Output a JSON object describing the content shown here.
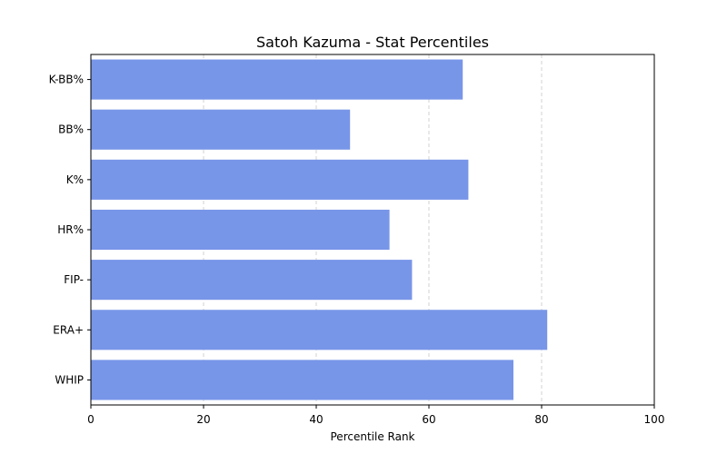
{
  "chart_data": {
    "type": "bar",
    "orientation": "horizontal",
    "title": "Satoh Kazuma - Stat Percentiles",
    "xlabel": "Percentile Rank",
    "ylabel": "",
    "categories": [
      "K-BB%",
      "BB%",
      "K%",
      "HR%",
      "FIP-",
      "ERA+",
      "WHIP"
    ],
    "values": [
      66,
      46,
      67,
      53,
      57,
      81,
      75
    ],
    "xlim": [
      0,
      100
    ],
    "xticks": [
      0,
      20,
      40,
      60,
      80,
      100
    ],
    "grid": "x-dashed",
    "bar_color": "#7896e8"
  }
}
